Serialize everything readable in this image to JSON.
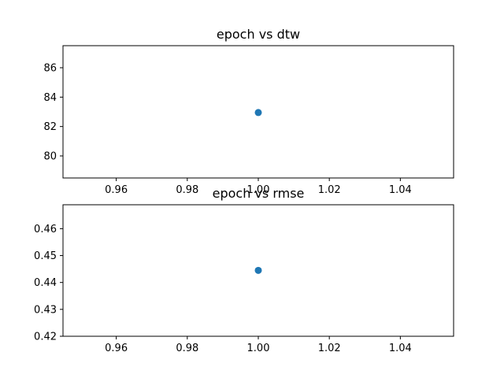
{
  "chart_data": [
    {
      "type": "scatter",
      "title": "epoch vs dtw",
      "xlabel": "",
      "ylabel": "",
      "x": [
        1.0
      ],
      "y": [
        82.95
      ],
      "xlim": [
        0.945,
        1.055
      ],
      "ylim": [
        78.5,
        87.5
      ],
      "xticks": [
        0.96,
        0.98,
        1.0,
        1.02,
        1.04
      ],
      "xtick_labels": [
        "0.96",
        "0.98",
        "1.00",
        "1.02",
        "1.04"
      ],
      "yticks": [
        80,
        82,
        84,
        86
      ],
      "ytick_labels": [
        "80",
        "82",
        "84",
        "86"
      ],
      "grid": false,
      "color": "#1f77b4"
    },
    {
      "type": "scatter",
      "title": "epoch vs rmse",
      "xlabel": "",
      "ylabel": "",
      "x": [
        1.0
      ],
      "y": [
        0.4445
      ],
      "xlim": [
        0.945,
        1.055
      ],
      "ylim": [
        0.42,
        0.4689
      ],
      "xticks": [
        0.96,
        0.98,
        1.0,
        1.02,
        1.04
      ],
      "xtick_labels": [
        "0.96",
        "0.98",
        "1.00",
        "1.02",
        "1.04"
      ],
      "yticks": [
        0.42,
        0.43,
        0.44,
        0.45,
        0.46
      ],
      "ytick_labels": [
        "0.42",
        "0.43",
        "0.44",
        "0.45",
        "0.46"
      ],
      "grid": false,
      "color": "#1f77b4"
    }
  ]
}
